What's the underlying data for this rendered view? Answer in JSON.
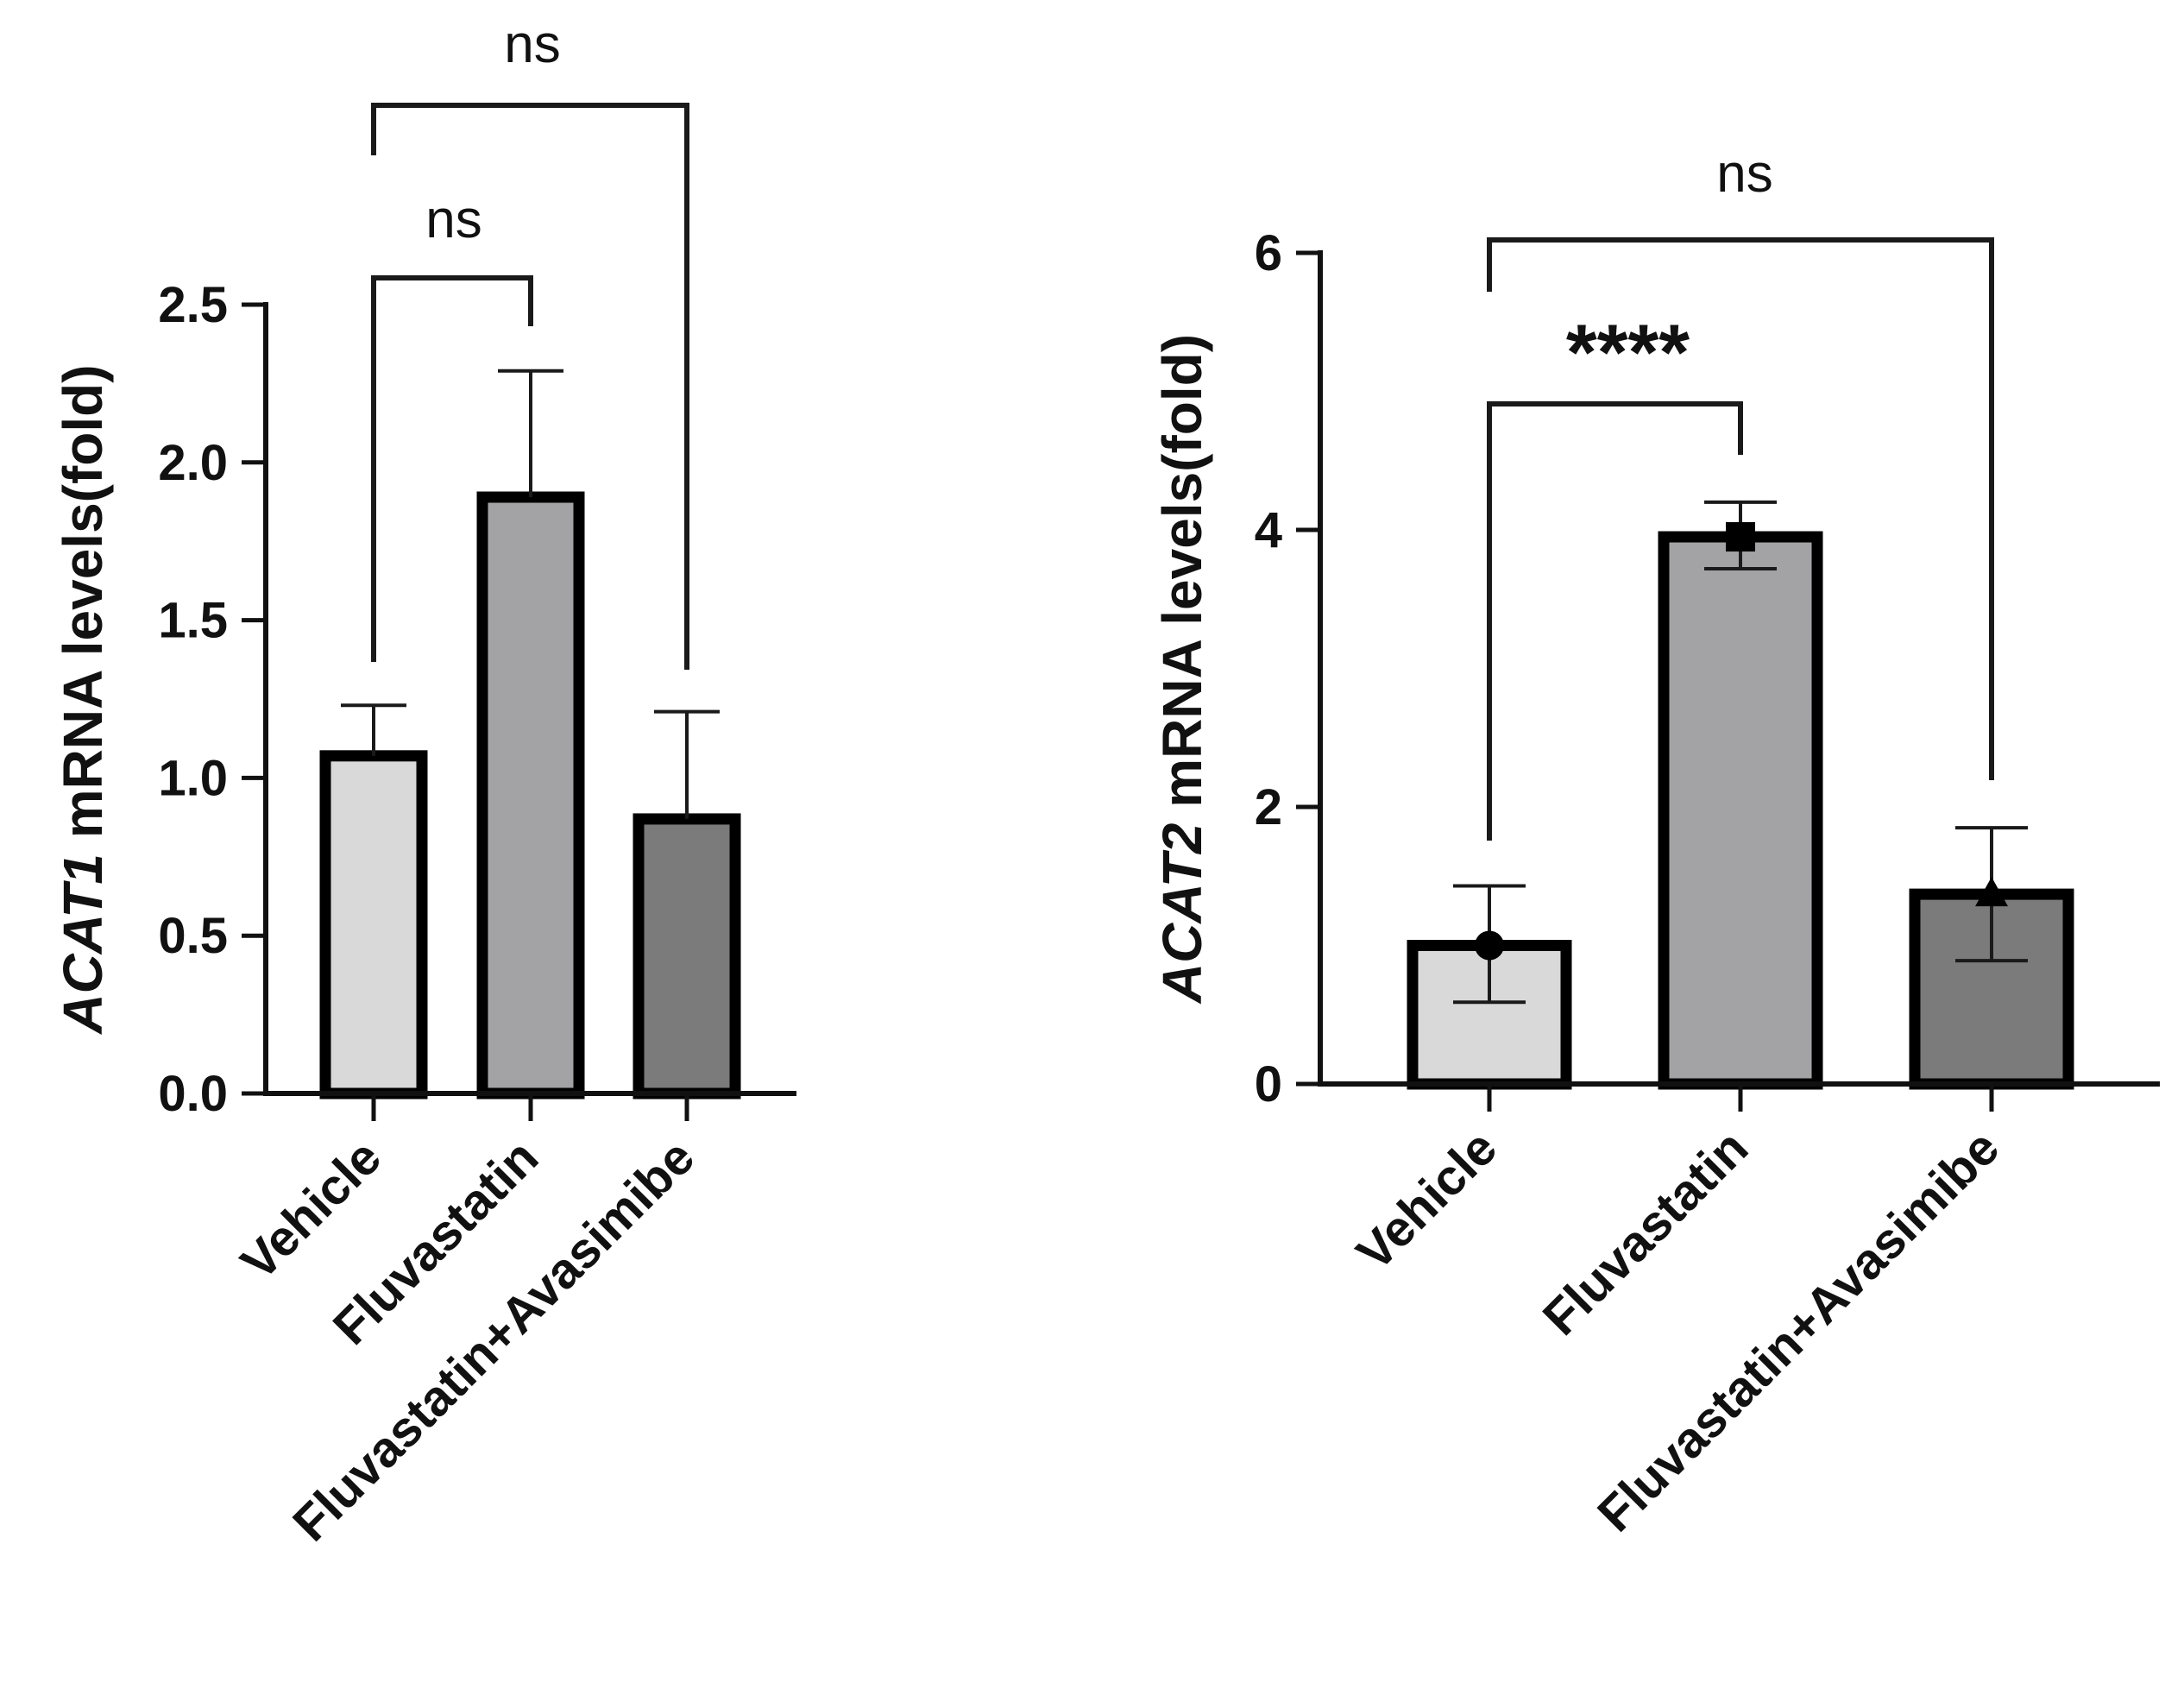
{
  "chart_data": [
    {
      "type": "bar",
      "title": "",
      "categories": [
        "Vehicle",
        "Fluvastatin",
        "Fluvastatin+Avasimibe"
      ],
      "values": [
        1.07,
        1.89,
        0.87
      ],
      "error_upper": [
        1.23,
        2.29,
        1.21
      ],
      "ylabel_italic": "ACAT1",
      "ylabel_rest": " mRNA levels(fold)",
      "xlabel": "",
      "ylim": [
        0,
        2.5
      ],
      "yticks": [
        0.0,
        0.5,
        1.0,
        1.5,
        2.0,
        2.5
      ],
      "ytick_labels": [
        "0.0",
        "0.5",
        "1.0",
        "1.5",
        "2.0",
        "2.5"
      ],
      "bar_colors": [
        "#d9d9d9",
        "#a3a3a6",
        "#7b7b7b"
      ],
      "comparisons": [
        {
          "from": 0,
          "to": 1,
          "label": "ns",
          "level": 2.58
        },
        {
          "from": 0,
          "to": 2,
          "label": "ns",
          "level": 3.12
        }
      ]
    },
    {
      "type": "bar",
      "title": "",
      "categories": [
        "Vehicle",
        "Fluvastatin",
        "Fluvastatin+Avasimibe"
      ],
      "values": [
        1.0,
        3.95,
        1.37
      ],
      "error_upper": [
        1.43,
        4.2,
        1.85
      ],
      "error_lower": [
        0.59,
        3.72,
        0.89
      ],
      "markers": [
        "circle",
        "square",
        "triangle"
      ],
      "ylabel_italic": "ACAT2",
      "ylabel_rest": " mRNA levels(fold)",
      "xlabel": "",
      "ylim": [
        0,
        6
      ],
      "yticks": [
        0,
        2,
        4,
        6
      ],
      "ytick_labels": [
        "0",
        "2",
        "4",
        "6"
      ],
      "bar_colors": [
        "#d9d9d9",
        "#a3a3a6",
        "#7b7b7b"
      ],
      "comparisons": [
        {
          "from": 0,
          "to": 1,
          "label": "****",
          "level": 4.9
        },
        {
          "from": 0,
          "to": 2,
          "label": "ns",
          "level": 6.1
        }
      ]
    }
  ]
}
